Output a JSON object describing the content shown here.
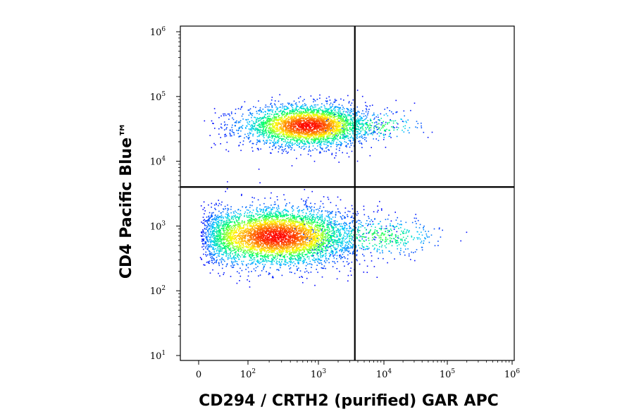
{
  "chart_data": {
    "type": "scatter",
    "subtype": "flow-cytometry-density-dot-plot",
    "xlabel": "CD294 / CRTH2 (purified) GAR APC",
    "ylabel": "CD4 Pacific Blue™",
    "x_scale": "biexponential",
    "y_scale": "log",
    "x_ticks": [
      {
        "value": 0,
        "base": "0",
        "exp": ""
      },
      {
        "value": 100,
        "base": "10",
        "exp": "2"
      },
      {
        "value": 1000,
        "base": "10",
        "exp": "3"
      },
      {
        "value": 10000,
        "base": "10",
        "exp": "4"
      },
      {
        "value": 100000,
        "base": "10",
        "exp": "5"
      },
      {
        "value": 1000000,
        "base": "10",
        "exp": "6"
      }
    ],
    "y_ticks": [
      {
        "value": 10,
        "base": "10",
        "exp": "1"
      },
      {
        "value": 100,
        "base": "10",
        "exp": "2"
      },
      {
        "value": 1000,
        "base": "10",
        "exp": "3"
      },
      {
        "value": 10000,
        "base": "10",
        "exp": "4"
      },
      {
        "value": 100000,
        "base": "10",
        "exp": "5"
      },
      {
        "value": 1000000,
        "base": "10",
        "exp": "6"
      }
    ],
    "xlim": [
      -30,
      1000000
    ],
    "ylim": [
      8,
      1000000
    ],
    "gates": {
      "x": 3600,
      "y": 4000
    },
    "populations": [
      {
        "name": "",
        "x_center": 700,
        "y_center": 36000,
        "x_spread_decades": 0.45,
        "y_spread_decades": 0.16,
        "relative_count": 0.38
      },
      {
        "name": "",
        "x_center": 250,
        "y_center": 700,
        "x_spread_decades": 0.55,
        "y_spread_decades": 0.22,
        "relative_count": 0.55
      },
      {
        "name": "",
        "x_center": 8000,
        "y_center": 700,
        "x_spread_decades": 0.5,
        "y_spread_decades": 0.15,
        "relative_count": 0.05
      },
      {
        "name": "",
        "x_center": 8000,
        "y_center": 36000,
        "x_spread_decades": 0.35,
        "y_spread_decades": 0.12,
        "relative_count": 0.02
      }
    ],
    "density_colormap": [
      "#0000ff",
      "#00c8ff",
      "#00ff64",
      "#ffff00",
      "#ff8000",
      "#ff0000"
    ],
    "grid": false,
    "legend": "none"
  }
}
